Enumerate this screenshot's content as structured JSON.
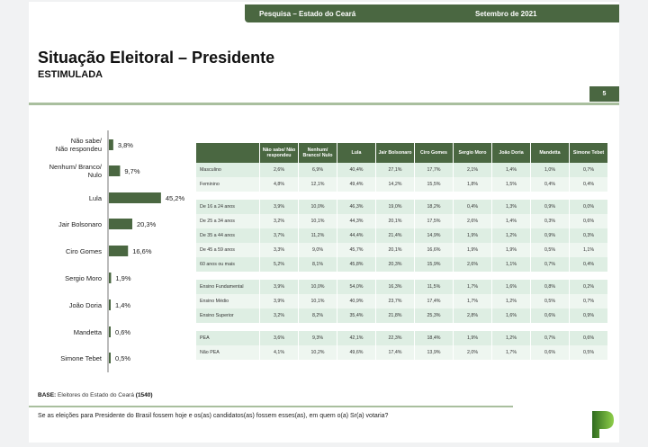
{
  "header": {
    "survey": "Pesquisa – Estado do Ceará",
    "date": "Setembro de 2021"
  },
  "title": "Situação Eleitoral – Presidente",
  "subtitle": "ESTIMULADA",
  "page_number": "5",
  "chart_data": {
    "type": "bar",
    "orientation": "horizontal",
    "categories": [
      "Não sabe/ Não respondeu",
      "Nenhum/ Branco/ Nulo",
      "Lula",
      "Jair Bolsonaro",
      "Ciro Gomes",
      "Sergio Moro",
      "João Doria",
      "Mandetta",
      "Simone Tebet"
    ],
    "values": [
      3.8,
      9.7,
      45.2,
      20.3,
      16.6,
      1.9,
      1.4,
      0.6,
      0.5
    ],
    "labels": [
      "3,8%",
      "9,7%",
      "45,2%",
      "20,3%",
      "16,6%",
      "1,9%",
      "1,4%",
      "0,6%",
      "0,5%"
    ],
    "bar_color": "#4a6741"
  },
  "table": {
    "headers": [
      "",
      "Não sabe/ Não respondeu",
      "Nenhum/ Branco/ Nulo",
      "Lula",
      "Jair Bolsonaro",
      "Ciro Gomes",
      "Sergio Moro",
      "João Doria",
      "Mandetta",
      "Simone Tebet"
    ],
    "groups": [
      [
        [
          "Masculino",
          "2,6%",
          "6,9%",
          "40,4%",
          "27,1%",
          "17,7%",
          "2,1%",
          "1,4%",
          "1,0%",
          "0,7%"
        ],
        [
          "Feminino",
          "4,8%",
          "12,1%",
          "49,4%",
          "14,2%",
          "15,5%",
          "1,8%",
          "1,5%",
          "0,4%",
          "0,4%"
        ]
      ],
      [
        [
          "De 16 a 24 anos",
          "3,9%",
          "10,0%",
          "46,3%",
          "19,0%",
          "18,2%",
          "0,4%",
          "1,3%",
          "0,9%",
          "0,0%"
        ],
        [
          "De 25 a 34 anos",
          "3,2%",
          "10,1%",
          "44,3%",
          "20,1%",
          "17,5%",
          "2,6%",
          "1,4%",
          "0,3%",
          "0,6%"
        ],
        [
          "De 35 a 44 anos",
          "3,7%",
          "11,2%",
          "44,4%",
          "21,4%",
          "14,9%",
          "1,9%",
          "1,2%",
          "0,9%",
          "0,3%"
        ],
        [
          "De 45 a 59 anos",
          "3,3%",
          "9,0%",
          "45,7%",
          "20,1%",
          "16,6%",
          "1,9%",
          "1,9%",
          "0,5%",
          "1,1%"
        ],
        [
          "60 anos ou mais",
          "5,2%",
          "8,1%",
          "45,8%",
          "20,3%",
          "15,9%",
          "2,6%",
          "1,1%",
          "0,7%",
          "0,4%"
        ]
      ],
      [
        [
          "Ensino Fundamental",
          "3,9%",
          "10,0%",
          "54,0%",
          "16,3%",
          "11,5%",
          "1,7%",
          "1,6%",
          "0,8%",
          "0,2%"
        ],
        [
          "Ensino Médio",
          "3,9%",
          "10,1%",
          "40,9%",
          "23,7%",
          "17,4%",
          "1,7%",
          "1,2%",
          "0,5%",
          "0,7%"
        ],
        [
          "Ensino Superior",
          "3,2%",
          "8,2%",
          "35,4%",
          "21,8%",
          "25,3%",
          "2,8%",
          "1,6%",
          "0,6%",
          "0,9%"
        ]
      ],
      [
        [
          "PEA",
          "3,6%",
          "9,3%",
          "42,1%",
          "22,3%",
          "18,4%",
          "1,9%",
          "1,2%",
          "0,7%",
          "0,6%"
        ],
        [
          "Não PEA",
          "4,1%",
          "10,2%",
          "49,6%",
          "17,4%",
          "13,9%",
          "2,0%",
          "1,7%",
          "0,6%",
          "0,5%"
        ]
      ]
    ]
  },
  "base": {
    "label": "BASE:",
    "text": "Eleitores do Estado do Ceará",
    "count": "(1540)"
  },
  "question": "Se as eleições para Presidente do Brasil fossem hoje e os(as) candidatos(as) fossem esses(as), em quem o(a) Sr(a) votaria?"
}
